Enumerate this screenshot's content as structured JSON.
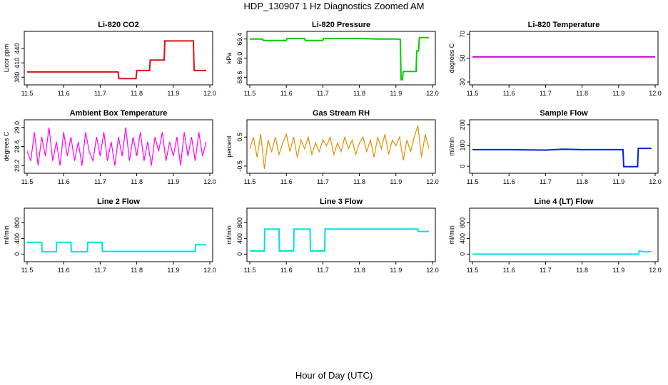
{
  "figure": {
    "title": "HDP_130907  1 Hz Diagnostics Zoomed AM",
    "xlabel": "Hour of Day (UTC)"
  },
  "chart_data": [
    {
      "type": "line",
      "title": "Li-820 CO2",
      "ylabel": "Licor ppm",
      "color": "#e01010",
      "xlim": [
        11.5,
        12.0
      ],
      "xticks": [
        11.5,
        11.6,
        11.7,
        11.8,
        11.9,
        12.0
      ],
      "ylim": [
        370,
        470
      ],
      "yticks": [
        380,
        410,
        440
      ],
      "series": [
        {
          "x": [
            11.5,
            11.6,
            11.7,
            11.749,
            11.751,
            11.798,
            11.8,
            11.835,
            11.837,
            11.875,
            11.877,
            11.955,
            11.957,
            11.99
          ],
          "y": [
            391,
            391,
            391,
            391,
            377,
            377,
            394,
            394,
            416,
            416,
            456,
            456,
            394,
            394
          ]
        }
      ]
    },
    {
      "type": "line",
      "title": "Li-820 Pressure",
      "ylabel": "kPa",
      "color": "#00cc00",
      "xlim": [
        11.5,
        12.0
      ],
      "xticks": [
        11.5,
        11.6,
        11.7,
        11.8,
        11.9,
        12.0
      ],
      "ylim": [
        68.5,
        69.5
      ],
      "yticks": [
        68.6,
        69.0,
        69.4
      ],
      "series": [
        {
          "x": [
            11.5,
            11.535,
            11.537,
            11.6,
            11.602,
            11.65,
            11.652,
            11.7,
            11.702,
            11.75,
            11.8,
            11.85,
            11.9,
            11.912,
            11.914,
            11.918,
            11.92,
            11.955,
            11.957,
            11.962,
            11.964,
            11.99
          ],
          "y": [
            69.4,
            69.4,
            69.37,
            69.37,
            69.41,
            69.41,
            69.37,
            69.37,
            69.41,
            69.41,
            69.41,
            69.4,
            69.4,
            69.39,
            68.55,
            68.55,
            68.72,
            68.72,
            69.15,
            69.15,
            69.43,
            69.43
          ]
        }
      ]
    },
    {
      "type": "line",
      "title": "Li-820 Temperature",
      "ylabel": "degrees C",
      "color": "#cc00cc",
      "xlim": [
        11.5,
        12.0
      ],
      "xticks": [
        11.5,
        11.6,
        11.7,
        11.8,
        11.9,
        12.0
      ],
      "ylim": [
        30,
        70
      ],
      "yticks": [
        30,
        50,
        70
      ],
      "series": [
        {
          "x": [
            11.5,
            12.0
          ],
          "y": [
            51,
            51
          ]
        }
      ]
    },
    {
      "type": "line",
      "title": "Ambient Box Temperature",
      "ylabel": "degrees C",
      "color": "#ff00ff",
      "xlim": [
        11.5,
        12.0
      ],
      "xticks": [
        11.5,
        11.6,
        11.7,
        11.8,
        11.9,
        12.0
      ],
      "ylim": [
        28.1,
        29.1
      ],
      "yticks": [
        28.2,
        28.6,
        29.0
      ],
      "series": [
        {
          "x": [
            11.5,
            11.51,
            11.52,
            11.53,
            11.54,
            11.55,
            11.56,
            11.57,
            11.58,
            11.59,
            11.6,
            11.61,
            11.62,
            11.63,
            11.64,
            11.65,
            11.66,
            11.67,
            11.68,
            11.69,
            11.7,
            11.71,
            11.72,
            11.73,
            11.74,
            11.75,
            11.76,
            11.77,
            11.78,
            11.79,
            11.8,
            11.81,
            11.82,
            11.83,
            11.84,
            11.85,
            11.86,
            11.87,
            11.88,
            11.89,
            11.9,
            11.91,
            11.92,
            11.93,
            11.94,
            11.95,
            11.96,
            11.97,
            11.98,
            11.99
          ],
          "y": [
            28.5,
            28.3,
            28.9,
            28.2,
            28.8,
            28.4,
            29.0,
            28.3,
            28.7,
            28.2,
            28.9,
            28.4,
            28.8,
            28.3,
            28.7,
            28.2,
            28.9,
            28.5,
            28.3,
            28.8,
            28.4,
            28.9,
            28.3,
            28.7,
            28.2,
            28.8,
            28.4,
            29.0,
            28.3,
            28.8,
            28.4,
            28.9,
            28.3,
            28.7,
            28.2,
            28.8,
            28.5,
            28.9,
            28.3,
            28.7,
            28.4,
            28.8,
            28.2,
            28.9,
            28.4,
            28.8,
            28.3,
            28.9,
            28.4,
            28.7
          ]
        }
      ]
    },
    {
      "type": "line",
      "title": "Gas Stream RH",
      "ylabel": "percent",
      "color": "#e09000",
      "xlim": [
        11.5,
        12.0
      ],
      "xticks": [
        11.5,
        11.6,
        11.7,
        11.8,
        11.9,
        12.0
      ],
      "ylim": [
        -0.65,
        1.0
      ],
      "yticks": [
        -0.5,
        0.5
      ],
      "series": [
        {
          "x": [
            11.5,
            11.51,
            11.52,
            11.53,
            11.54,
            11.55,
            11.56,
            11.57,
            11.58,
            11.59,
            11.6,
            11.61,
            11.62,
            11.63,
            11.64,
            11.65,
            11.66,
            11.67,
            11.68,
            11.69,
            11.7,
            11.71,
            11.72,
            11.73,
            11.74,
            11.75,
            11.76,
            11.77,
            11.78,
            11.79,
            11.8,
            11.81,
            11.82,
            11.83,
            11.84,
            11.85,
            11.86,
            11.87,
            11.88,
            11.89,
            11.9,
            11.91,
            11.92,
            11.93,
            11.94,
            11.95,
            11.96,
            11.97,
            11.98,
            11.99
          ],
          "y": [
            0.1,
            0.5,
            -0.2,
            0.6,
            -0.6,
            0.4,
            0.0,
            0.5,
            -0.1,
            0.3,
            0.6,
            0.0,
            0.5,
            -0.2,
            0.4,
            0.1,
            0.5,
            -0.1,
            0.3,
            0.0,
            0.4,
            0.2,
            0.5,
            -0.1,
            0.3,
            0.0,
            0.5,
            0.1,
            0.4,
            -0.1,
            0.3,
            0.5,
            0.0,
            0.4,
            -0.2,
            0.5,
            0.1,
            0.6,
            -0.1,
            0.4,
            0.2,
            0.5,
            -0.3,
            0.4,
            0.0,
            0.5,
            0.9,
            -0.2,
            0.6,
            0.1
          ]
        }
      ]
    },
    {
      "type": "line",
      "title": "Sample Flow",
      "ylabel": "ml/min",
      "color": "#0020e0",
      "xlim": [
        11.5,
        12.0
      ],
      "xticks": [
        11.5,
        11.6,
        11.7,
        11.8,
        11.9,
        12.0
      ],
      "ylim": [
        -20,
        210
      ],
      "yticks": [
        0,
        100,
        200
      ],
      "series": [
        {
          "x": [
            11.5,
            11.6,
            11.7,
            11.75,
            11.8,
            11.9,
            11.912,
            11.914,
            11.952,
            11.954,
            11.99
          ],
          "y": [
            80,
            80,
            78,
            82,
            80,
            80,
            80,
            -2,
            -2,
            86,
            86
          ]
        }
      ]
    },
    {
      "type": "line",
      "title": "Line 2 Flow",
      "ylabel": "ml/min",
      "color": "#00e0e0",
      "xlim": [
        11.5,
        12.0
      ],
      "xticks": [
        11.5,
        11.6,
        11.7,
        11.8,
        11.9,
        12.0
      ],
      "ylim": [
        -120,
        1100
      ],
      "yticks": [
        0,
        400,
        800
      ],
      "series": [
        {
          "x": [
            11.5,
            11.54,
            11.541,
            11.58,
            11.581,
            11.62,
            11.621,
            11.665,
            11.666,
            11.705,
            11.706,
            11.96,
            11.961,
            11.99
          ],
          "y": [
            300,
            300,
            60,
            60,
            300,
            300,
            60,
            60,
            300,
            300,
            70,
            70,
            240,
            240
          ]
        }
      ]
    },
    {
      "type": "line",
      "title": "Line 3 Flow",
      "ylabel": "ml/min",
      "color": "#00e0e0",
      "xlim": [
        11.5,
        12.0
      ],
      "xticks": [
        11.5,
        11.6,
        11.7,
        11.8,
        11.9,
        12.0
      ],
      "ylim": [
        -120,
        1100
      ],
      "yticks": [
        0,
        400,
        800
      ],
      "series": [
        {
          "x": [
            11.5,
            11.54,
            11.541,
            11.58,
            11.581,
            11.62,
            11.621,
            11.665,
            11.666,
            11.705,
            11.706,
            11.96,
            11.961,
            11.99
          ],
          "y": [
            80,
            80,
            640,
            640,
            80,
            80,
            640,
            640,
            80,
            80,
            640,
            640,
            580,
            580
          ]
        }
      ]
    },
    {
      "type": "line",
      "title": "Line 4 (LT) Flow",
      "ylabel": "ml/min",
      "color": "#00e0e0",
      "xlim": [
        11.5,
        12.0
      ],
      "xticks": [
        11.5,
        11.6,
        11.7,
        11.8,
        11.9,
        12.0
      ],
      "ylim": [
        -120,
        1100
      ],
      "yticks": [
        0,
        400,
        800
      ],
      "series": [
        {
          "x": [
            11.5,
            11.955,
            11.956,
            11.97,
            11.99
          ],
          "y": [
            0,
            0,
            80,
            60,
            60
          ]
        }
      ]
    }
  ]
}
